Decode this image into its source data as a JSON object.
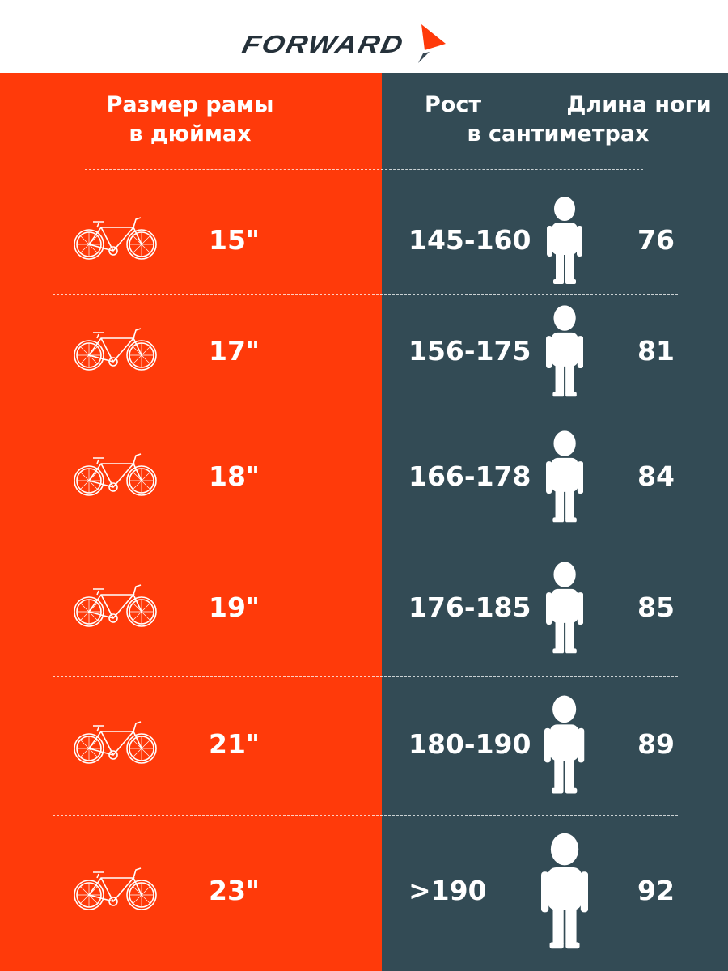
{
  "brand": {
    "name": "FORWARD",
    "accent": "#ff3a0a",
    "dark": "#334b55"
  },
  "headers": {
    "frame_size": [
      "Размер рамы",
      "в дюймах"
    ],
    "height": "Рост",
    "leg_length": "Длина ноги",
    "units": "в сантиметрах"
  },
  "rows": [
    {
      "frame": "15\"",
      "height": "145-160",
      "leg": "76"
    },
    {
      "frame": "17\"",
      "height": "156-175",
      "leg": "81"
    },
    {
      "frame": "18\"",
      "height": "166-178",
      "leg": "84"
    },
    {
      "frame": "19\"",
      "height": "176-185",
      "leg": "85"
    },
    {
      "frame": "21\"",
      "height": "180-190",
      "leg": "89"
    },
    {
      "frame": "23\"",
      "height": ">190",
      "leg": "92"
    }
  ]
}
